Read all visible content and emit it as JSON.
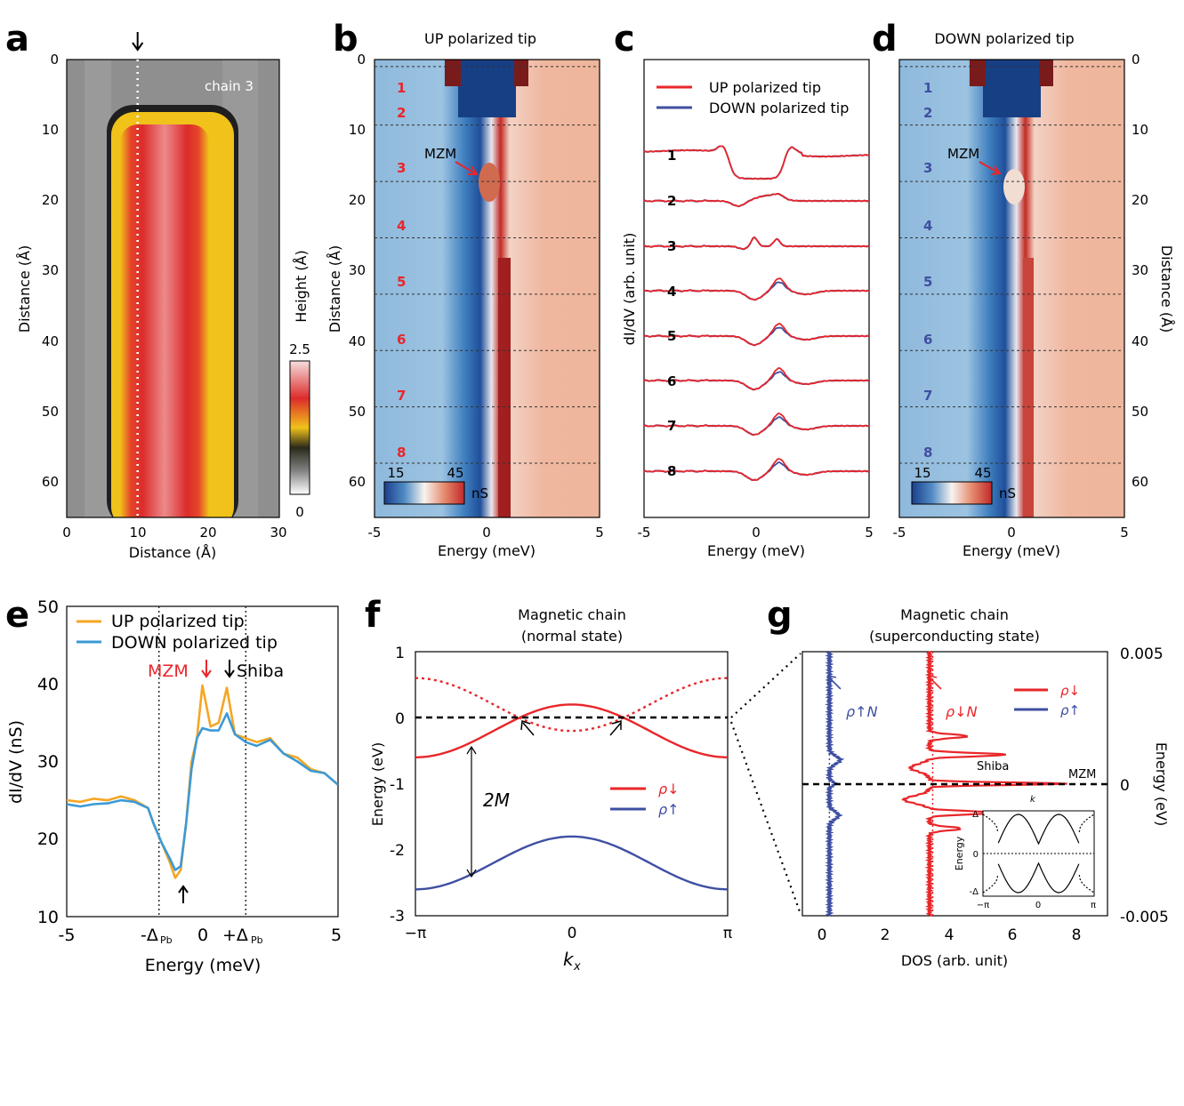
{
  "colors": {
    "up": "#e8262a",
    "down": "#3f4fa1",
    "orange": "#f5a623",
    "lightblue": "#3c9ad6",
    "cmap_low": "#1b3f8c",
    "cmap_mid": "#f7f4f0",
    "cmap_high": "#c0282a",
    "height_red": "#dd2b2b",
    "height_yellow": "#f0c21a",
    "height_gray": "#8f8f8f"
  },
  "chart_data": [
    {
      "id": "a",
      "type": "heatmap",
      "letter": "a",
      "annotation": "chain 3",
      "xlabel": "Distance (Å)",
      "ylabel": "Distance (Å)",
      "xlim": [
        0,
        30
      ],
      "ylim": [
        0,
        65
      ],
      "xticks": [
        "0",
        "10",
        "20",
        "30"
      ],
      "yticks": [
        "0",
        "10",
        "20",
        "30",
        "40",
        "50",
        "60"
      ],
      "line_scan_x": 10,
      "colorbar": {
        "label": "Height (Å)",
        "max": "2.5",
        "min": "0"
      }
    },
    {
      "id": "b",
      "type": "heatmap",
      "letter": "b",
      "title": "UP polarized tip",
      "xlabel": "Energy (meV)",
      "ylabel": "Distance (Å)",
      "xlim": [
        -5,
        5
      ],
      "ylim": [
        0,
        65
      ],
      "xticks": [
        "-5",
        "0",
        "5"
      ],
      "yticks": [
        "0",
        "10",
        "20",
        "30",
        "40",
        "50",
        "60"
      ],
      "cut_distances": [
        1,
        9.3,
        17.3,
        25.3,
        33.3,
        41.3,
        49.3,
        57.3
      ],
      "row_labels": [
        "1",
        "2",
        "3",
        "4",
        "5",
        "6",
        "7",
        "8"
      ],
      "row_label_distances": [
        4,
        7.5,
        15.5,
        23.5,
        31.5,
        39.5,
        47.5,
        55.5
      ],
      "annotation": "MZM",
      "colorbar": {
        "min": "15",
        "max": "45",
        "unit": "nS"
      }
    },
    {
      "id": "c",
      "type": "line",
      "letter": "c",
      "xlabel": "Energy (meV)",
      "ylabel": "dI/dV (arb. unit)",
      "xlim": [
        -5,
        5
      ],
      "xticks": [
        "-5",
        "0",
        "5"
      ],
      "legend": [
        "UP polarized tip",
        "DOWN polarized tip"
      ],
      "trace_labels": [
        "1",
        "2",
        "3",
        "4",
        "5",
        "6",
        "7",
        "8"
      ]
    },
    {
      "id": "d",
      "type": "heatmap",
      "letter": "d",
      "title": "DOWN polarized tip",
      "xlabel": "Energy (meV)",
      "ylabel": "Distance (Å)",
      "xlim": [
        -5,
        5
      ],
      "ylim": [
        0,
        65
      ],
      "xticks": [
        "-5",
        "0",
        "5"
      ],
      "yticks": [
        "0",
        "10",
        "20",
        "30",
        "40",
        "50",
        "60"
      ],
      "row_labels": [
        "1",
        "2",
        "3",
        "4",
        "5",
        "6",
        "7",
        "8"
      ],
      "annotation": "MZM",
      "colorbar": {
        "min": "15",
        "max": "45",
        "unit": "nS"
      }
    },
    {
      "id": "e",
      "type": "line",
      "letter": "e",
      "xlabel": "Energy (meV)",
      "ylabel": "dI/dV (nS)",
      "xlim": [
        -5,
        5
      ],
      "ylim": [
        10,
        50
      ],
      "xticks": [
        "-5",
        "0",
        "5"
      ],
      "xtick_special": [
        "-Δ",
        "Pb",
        "+Δ",
        "Pb"
      ],
      "yticks": [
        "10",
        "20",
        "30",
        "40",
        "50"
      ],
      "legend": [
        "UP polarized tip",
        "DOWN polarized tip"
      ],
      "annotations": [
        "MZM",
        "Shiba"
      ],
      "gap_edges": [
        -1.6,
        1.6
      ],
      "series": [
        {
          "name": "UP polarized tip",
          "x": [
            -5,
            -4.5,
            -4,
            -3.5,
            -3,
            -2.5,
            -2,
            -1.8,
            -1.5,
            -1.2,
            -1,
            -0.8,
            -0.6,
            -0.4,
            -0.2,
            0,
            0.3,
            0.6,
            0.9,
            1.2,
            1.6,
            2,
            2.5,
            3,
            3.5,
            4,
            4.5,
            5
          ],
          "values": [
            25,
            24.8,
            25.2,
            25,
            25.5,
            25,
            24,
            22,
            19.5,
            17,
            15,
            16,
            22,
            30,
            33,
            39.8,
            34.5,
            35,
            39.5,
            33.5,
            33,
            32.5,
            33,
            31,
            30.5,
            29,
            28.5,
            27
          ]
        },
        {
          "name": "DOWN polarized tip",
          "x": [
            -5,
            -4.5,
            -4,
            -3.5,
            -3,
            -2.5,
            -2,
            -1.8,
            -1.5,
            -1.2,
            -1,
            -0.8,
            -0.6,
            -0.4,
            -0.2,
            0,
            0.3,
            0.6,
            0.9,
            1.2,
            1.6,
            2,
            2.5,
            3,
            3.5,
            4,
            4.5,
            5
          ],
          "values": [
            24.5,
            24.2,
            24.5,
            24.6,
            25,
            24.8,
            24,
            22,
            19.5,
            17.5,
            16,
            16.5,
            22,
            29,
            33,
            34.3,
            34,
            34,
            36.2,
            33.5,
            32.5,
            32,
            32.8,
            31,
            30,
            28.8,
            28.5,
            27
          ]
        }
      ]
    },
    {
      "id": "f",
      "type": "line",
      "letter": "f",
      "title": "Magnetic chain",
      "subtitle": "(normal state)",
      "xlabel": "k",
      "xlabel_sub": "x",
      "ylabel": "Energy (eV)",
      "xlim": [
        -3.1416,
        3.1416
      ],
      "ylim": [
        -3,
        1
      ],
      "xticks": [
        "−π",
        "0",
        "π"
      ],
      "yticks": [
        "1",
        "0",
        "-1",
        "-2",
        "-3"
      ],
      "legend": [
        "ρ↓",
        "ρ↑"
      ],
      "annotation": "2M",
      "bands": [
        {
          "name": "ρ↓",
          "style": "solid",
          "formula": "-0.2-0.4cos(k) inverted: 0.2 at k=0, -0.6 at ±π",
          "center": 0.2,
          "edge": -0.6
        },
        {
          "name": "ρ↓ mirror",
          "style": "dotted",
          "center": -0.2,
          "edge": 0.6
        },
        {
          "name": "ρ↑",
          "style": "solid",
          "center": -1.8,
          "edge": -2.6
        }
      ]
    },
    {
      "id": "g",
      "type": "line",
      "letter": "g",
      "title": "Magnetic chain",
      "subtitle": "(superconducting state)",
      "xlabel": "DOS (arb. unit)",
      "ylabel": "Energy (eV)",
      "xlim": [
        -0.8,
        8.8
      ],
      "ylim": [
        -0.005,
        0.005
      ],
      "xticks": [
        "0",
        "2",
        "4",
        "6",
        "8"
      ],
      "yticks_right": [
        "0.005",
        "0",
        "-0.005"
      ],
      "legend": [
        "ρ↓",
        "ρ↑"
      ],
      "annotations": [
        "Shiba",
        "MZM",
        "ρ↑N",
        "ρ↓N"
      ],
      "inset": {
        "xlabel": "k",
        "ylabel": "Energy",
        "xticks": [
          "−π",
          "0",
          "π"
        ],
        "yticks": [
          "Δ",
          "0",
          "-Δ"
        ]
      }
    }
  ]
}
